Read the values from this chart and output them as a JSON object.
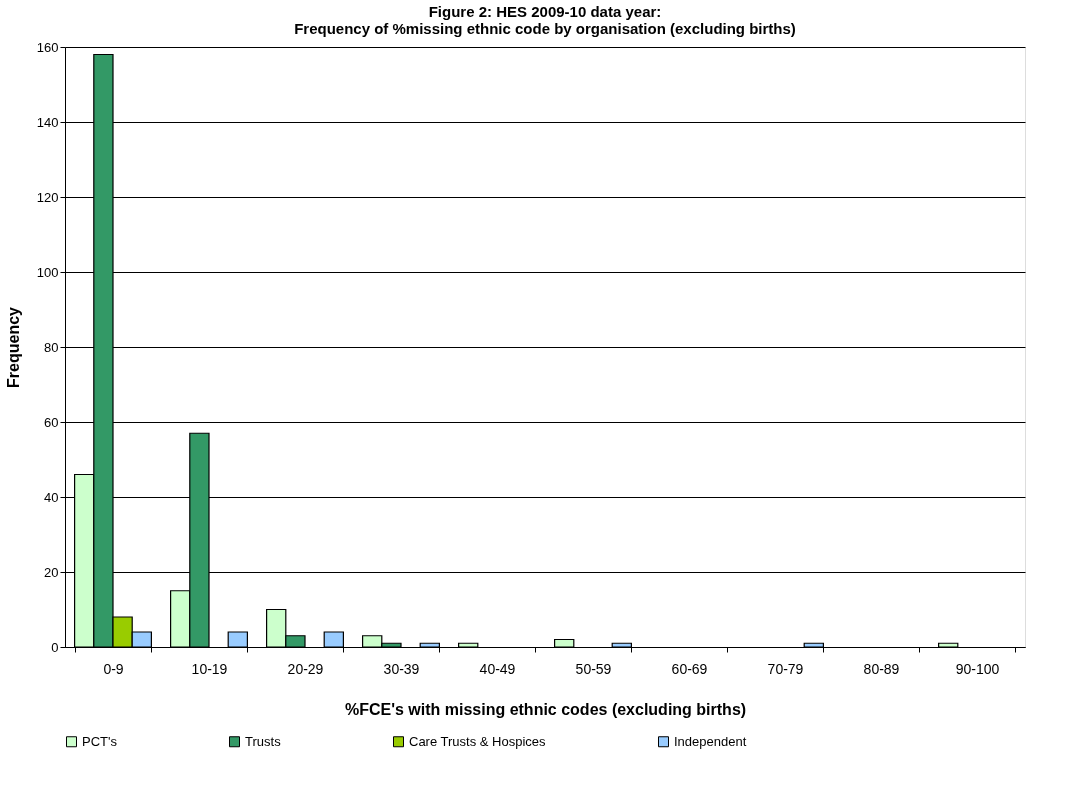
{
  "chart_data": {
    "type": "bar",
    "title": [
      "Figure 2: HES 2009-10 data year:",
      "Frequency of %missing ethnic code by organisation (excluding births)"
    ],
    "xlabel": "%FCE's with missing ethnic codes (excluding births)",
    "ylabel": "Frequency",
    "categories": [
      "0-9",
      "10-19",
      "20-29",
      "30-39",
      "40-49",
      "50-59",
      "60-69",
      "70-79",
      "80-89",
      "90-100"
    ],
    "series": [
      {
        "name": "PCT's",
        "color": "#ccffcc",
        "values": [
          46,
          15,
          10,
          3,
          1,
          2,
          0,
          0,
          0,
          1
        ]
      },
      {
        "name": "Trusts",
        "color": "#339966",
        "values": [
          158,
          57,
          3,
          1,
          0,
          0,
          0,
          0,
          0,
          0
        ]
      },
      {
        "name": "Care Trusts & Hospices",
        "color": "#99cc00",
        "values": [
          8,
          0,
          0,
          0,
          0,
          0,
          0,
          0,
          0,
          0
        ]
      },
      {
        "name": "Independent",
        "color": "#99ccff",
        "values": [
          4,
          4,
          4,
          1,
          0,
          1,
          0,
          1,
          0,
          0
        ]
      }
    ],
    "ylim": [
      0,
      160
    ],
    "yticks": [
      0,
      20,
      40,
      60,
      80,
      100,
      120,
      140,
      160
    ],
    "grid": "y",
    "legend": "bottom"
  }
}
